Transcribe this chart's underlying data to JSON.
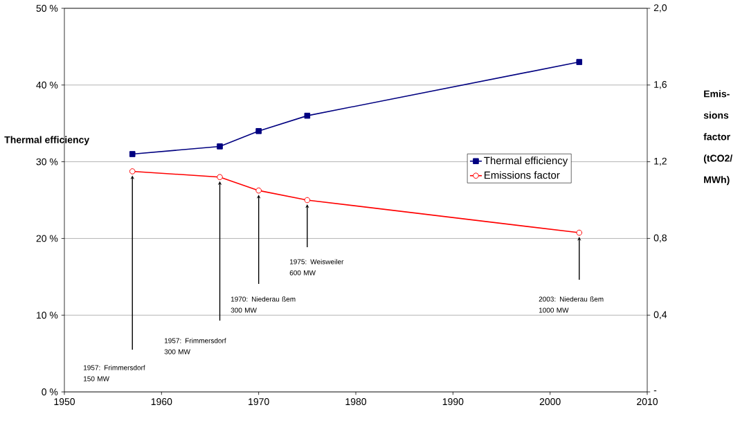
{
  "chart_data": {
    "type": "line",
    "x": [
      1957,
      1966,
      1970,
      1975,
      2003
    ],
    "series": [
      {
        "name": "Thermal efficiency",
        "color": "#000080",
        "marker": "square",
        "values": [
          31,
          32,
          34,
          36,
          43
        ]
      },
      {
        "name": "Emissions factor",
        "color": "#ff0000",
        "marker": "circle",
        "axis": "y2",
        "values": [
          1.15,
          1.12,
          1.05,
          1.0,
          0.83
        ]
      }
    ],
    "xlim": [
      1950,
      2010
    ],
    "xticks": [
      1950,
      1960,
      1970,
      1980,
      1990,
      2000,
      2010
    ],
    "ylim": [
      0,
      50
    ],
    "yticks": [
      {
        "value": 0,
        "label": "0 %"
      },
      {
        "value": 10,
        "label": "10 %"
      },
      {
        "value": 20,
        "label": "20 %"
      },
      {
        "value": 30,
        "label": "30 %"
      },
      {
        "value": 40,
        "label": "40 %"
      },
      {
        "value": 50,
        "label": "50 %"
      }
    ],
    "y2lim": [
      0,
      2
    ],
    "y2ticks": [
      {
        "value": 0,
        "label": "-"
      },
      {
        "value": 0.4,
        "label": "0,4"
      },
      {
        "value": 0.8,
        "label": "0,8"
      },
      {
        "value": 1.2,
        "label": "1,2"
      },
      {
        "value": 1.6,
        "label": "1,6"
      },
      {
        "value": 2.0,
        "label": "2,0"
      }
    ],
    "ylabel": "Thermal efficiency",
    "y2label": "Emis-sions factor (tCO2/ MWh)",
    "annotations": [
      "1957: Frimmersdorf 150 MW",
      "1957: Frimmersdorf 300 MW",
      "1970: Niederau ßem 300 MW",
      "1975: Weisweiler 600 MW",
      "2003: Niederau ßem 1000 MW"
    ],
    "grid": "y",
    "legend": "right",
    "line_style": "solid"
  }
}
